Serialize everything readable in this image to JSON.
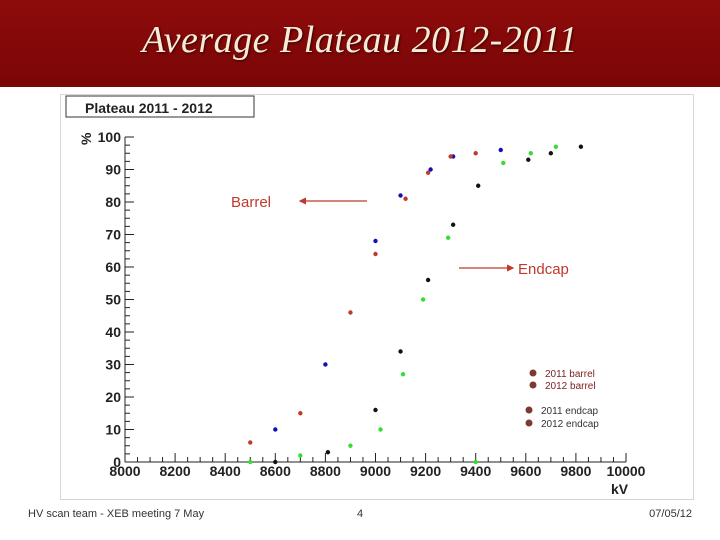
{
  "slide": {
    "title": "Average Plateau 2012-2011",
    "footer_left": "HV scan team - XEB meeting 7 May",
    "footer_page": "4",
    "footer_date": "07/05/12",
    "colors": {
      "banner": "#7f0808",
      "title_text": "#f4ecd8"
    }
  },
  "chart_data": {
    "type": "scatter",
    "title": "Plateau 2011 - 2012",
    "xlabel": "kV",
    "ylabel": "%",
    "xlim": [
      8000,
      10000
    ],
    "ylim": [
      0,
      100
    ],
    "x_ticks": [
      8000,
      8200,
      8400,
      8600,
      8800,
      9000,
      9200,
      9400,
      9600,
      9800,
      10000
    ],
    "y_ticks": [
      0,
      10,
      20,
      30,
      40,
      50,
      60,
      70,
      80,
      90,
      100
    ],
    "grid": false,
    "legend_position": "bottom-right",
    "series": [
      {
        "name": "2011 barrel",
        "color": "#1010b8",
        "x": [
          8600,
          8800,
          9000,
          9100,
          9220,
          9310,
          9500
        ],
        "y": [
          10,
          30,
          68,
          82,
          90,
          94,
          96
        ]
      },
      {
        "name": "2012 barrel",
        "color": "#c0392b",
        "x": [
          8500,
          8700,
          8900,
          9000,
          9120,
          9210,
          9300,
          9400
        ],
        "y": [
          6,
          15,
          46,
          64,
          81,
          89,
          94,
          95
        ]
      },
      {
        "name": "2011 endcap",
        "color": "#33dd33",
        "x": [
          8500,
          8700,
          8900,
          9020,
          9110,
          9190,
          9290,
          9400,
          9510,
          9620,
          9720
        ],
        "y": [
          0,
          2,
          5,
          10,
          27,
          50,
          69,
          0,
          92,
          95,
          97
        ]
      },
      {
        "name": "2012 endcap",
        "color": "#111111",
        "x": [
          8600,
          8810,
          9000,
          9100,
          9210,
          9310,
          9410,
          9610,
          9700,
          9820
        ],
        "y": [
          0,
          3,
          16,
          34,
          56,
          73,
          85,
          93,
          95,
          97
        ]
      }
    ],
    "annotations": [
      {
        "label": "Barrel",
        "color": "#c0392b"
      },
      {
        "label": "Endcap",
        "color": "#c0392b"
      }
    ]
  }
}
